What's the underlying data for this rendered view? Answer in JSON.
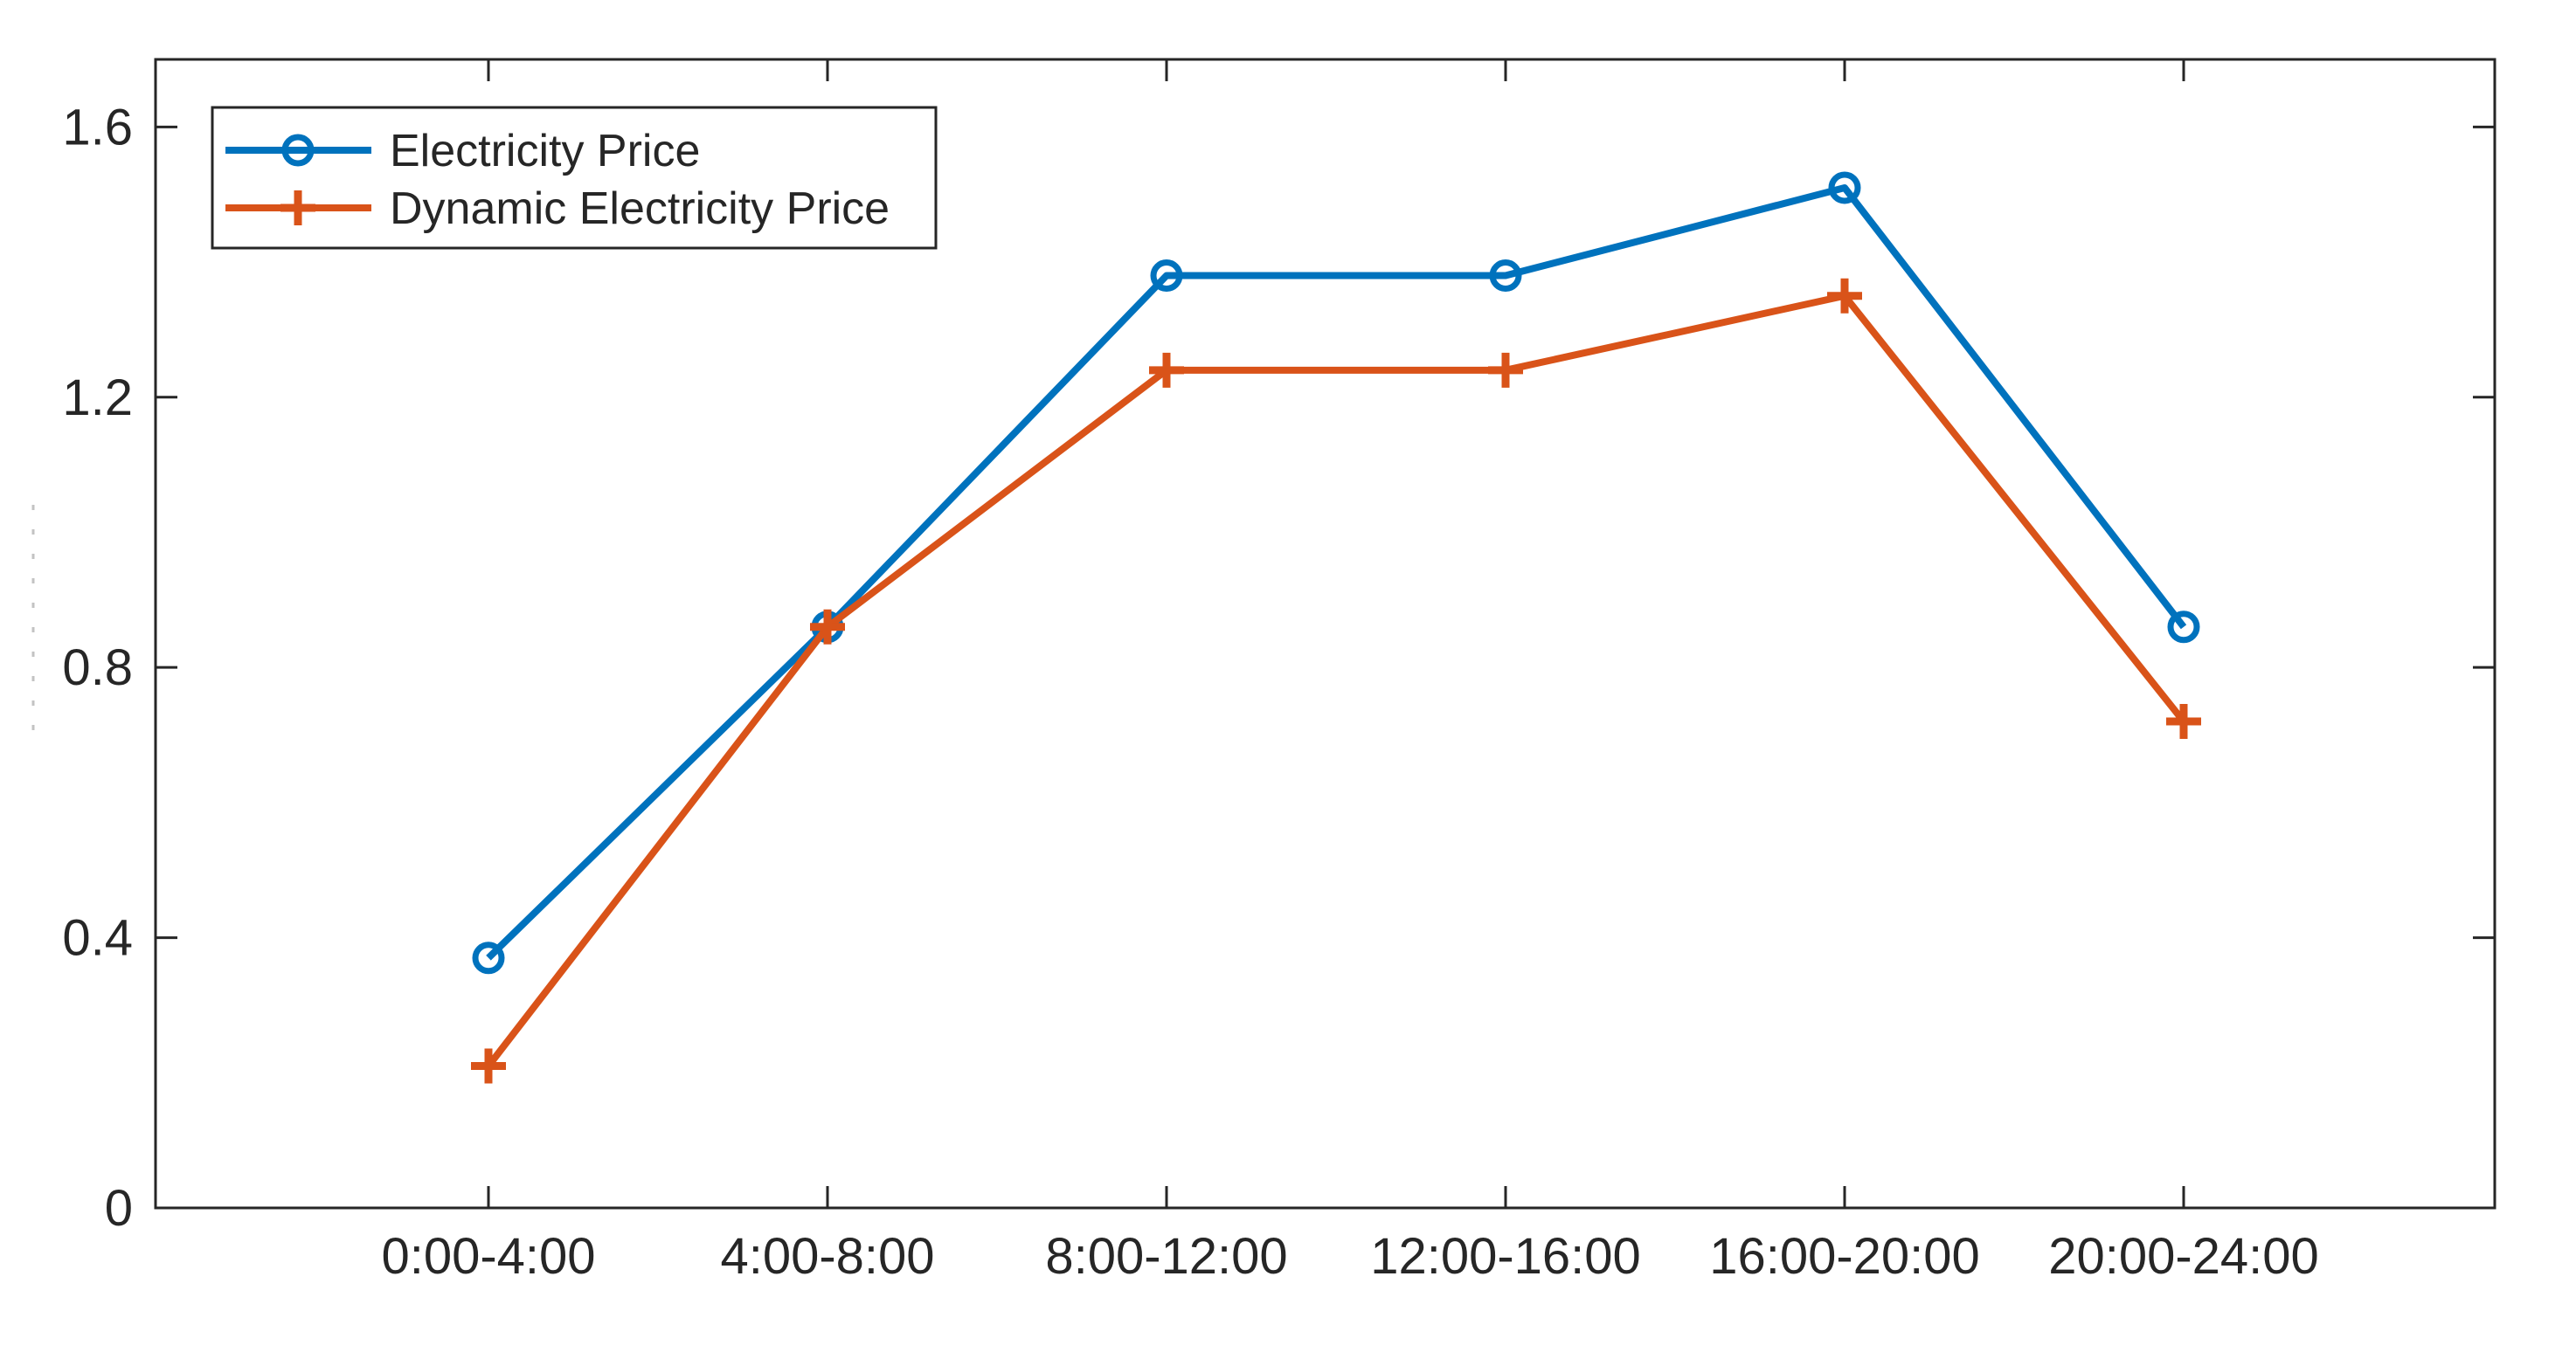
{
  "chart_data": {
    "type": "line",
    "title": "",
    "xlabel": "",
    "ylabel": "",
    "categories": [
      "0:00-4:00",
      "4:00-8:00",
      "8:00-12:00",
      "12:00-16:00",
      "16:00-20:00",
      "20:00-24:00"
    ],
    "series": [
      {
        "name": "Electricity Price",
        "color": "#0072BD",
        "marker": "circle",
        "values": [
          0.37,
          0.86,
          1.38,
          1.38,
          1.51,
          0.86
        ]
      },
      {
        "name": "Dynamic Electricity Price",
        "color": "#D95319",
        "marker": "plus",
        "values": [
          0.21,
          0.86,
          1.24,
          1.24,
          1.35,
          0.72
        ]
      }
    ],
    "y_ticks": [
      0,
      0.4,
      0.8,
      1.2,
      1.6
    ],
    "y_tick_labels": [
      "0",
      "0.4",
      "0.8",
      "1.2",
      "1.6"
    ],
    "ylim": [
      0,
      1.7
    ],
    "grid": false,
    "legend_position": "top-left",
    "axis_color": "#262626",
    "background": "#ffffff"
  }
}
